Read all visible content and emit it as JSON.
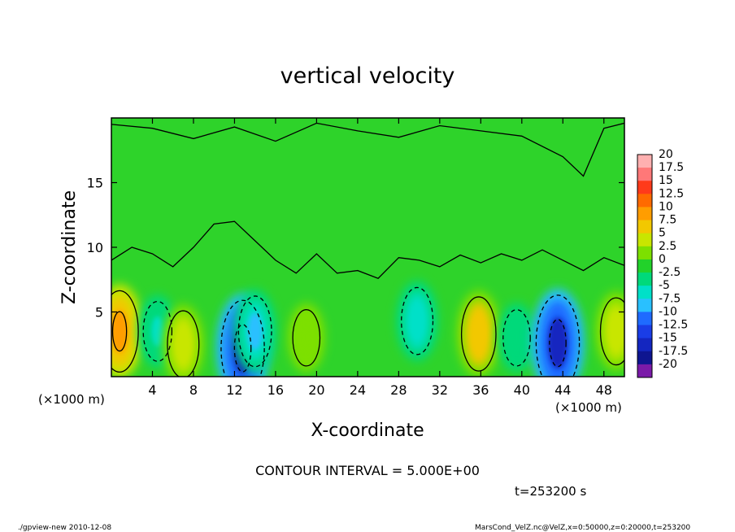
{
  "chart_data": {
    "type": "heatmap",
    "title": "vertical velocity",
    "xlabel": "X-coordinate",
    "ylabel": "Z-coordinate",
    "x_unit_label": "(×1000 m)",
    "x_unit_label_left": "(×1000 m)",
    "xlim": [
      0,
      50
    ],
    "ylim": [
      0,
      20
    ],
    "xticks": [
      "4",
      "8",
      "12",
      "16",
      "20",
      "24",
      "28",
      "32",
      "36",
      "40",
      "44",
      "48"
    ],
    "xtick_values": [
      4,
      8,
      12,
      16,
      20,
      24,
      28,
      32,
      36,
      40,
      44,
      48
    ],
    "yticks": [
      "5",
      "10",
      "15"
    ],
    "ytick_values": [
      5,
      10,
      15
    ],
    "contour_interval_text": "CONTOUR INTERVAL = 5.000E+00",
    "time_text": "t=253200 s",
    "footer_left": "./gpview-new  2010-12-08",
    "footer_right": "MarsCond_VelZ.nc@VelZ,x=0:50000,z=0:20000,t=253200",
    "colorbar": {
      "labels": [
        "20",
        "17.5",
        "15",
        "12.5",
        "10",
        "7.5",
        "5",
        "2.5",
        "0",
        "-2.5",
        "-5",
        "-7.5",
        "-10",
        "-12.5",
        "-15",
        "-17.5",
        "-20"
      ],
      "colors": [
        "#ffb0b0",
        "#ff7878",
        "#ff3a1a",
        "#ff6a00",
        "#ff9d00",
        "#f2c800",
        "#c8e600",
        "#7de000",
        "#22d22a",
        "#00d97a",
        "#00e0c8",
        "#29c0ff",
        "#1f6bff",
        "#1a3de6",
        "#1426c0",
        "#0e1590",
        "#7a1aa8"
      ]
    },
    "features": [
      {
        "kind": "updraft",
        "x": 0.8,
        "z": 3.5,
        "value": 10
      },
      {
        "kind": "downdraft",
        "x": 4.5,
        "z": 3.5,
        "value": -4
      },
      {
        "kind": "updraft",
        "x": 7.0,
        "z": 2.5,
        "value": 6
      },
      {
        "kind": "downdraft",
        "x": 12.8,
        "z": 2.2,
        "value": -14
      },
      {
        "kind": "downdraft",
        "x": 14.0,
        "z": 3.5,
        "value": -7
      },
      {
        "kind": "updraft",
        "x": 19.0,
        "z": 3.0,
        "value": 3
      },
      {
        "kind": "downdraft",
        "x": 29.8,
        "z": 4.3,
        "value": -6
      },
      {
        "kind": "updraft",
        "x": 35.8,
        "z": 3.3,
        "value": 8
      },
      {
        "kind": "downdraft",
        "x": 39.5,
        "z": 3.0,
        "value": -3
      },
      {
        "kind": "downdraft",
        "x": 43.5,
        "z": 2.6,
        "value": -14
      },
      {
        "kind": "updraft",
        "x": 49.2,
        "z": 3.5,
        "value": 6
      }
    ]
  }
}
